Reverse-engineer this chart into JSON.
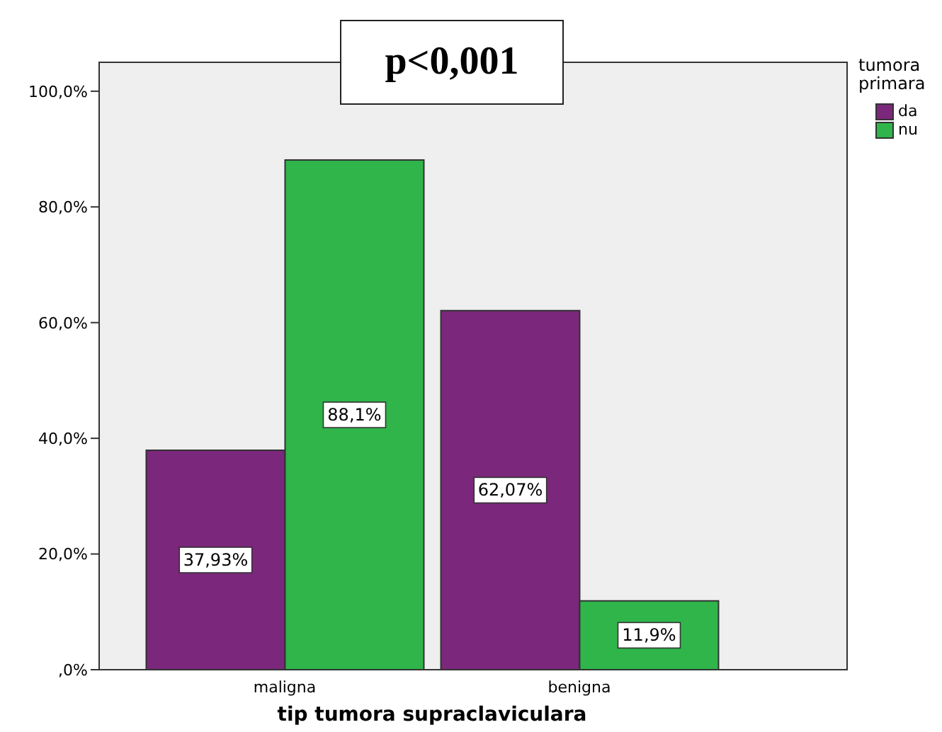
{
  "chart_data": {
    "type": "bar",
    "xlabel": "tip tumora supraclaviculara",
    "legend_title": "tumora primara",
    "categories": [
      "maligna",
      "benigna"
    ],
    "series": [
      {
        "name": "da",
        "color": "#7b277b",
        "values": [
          37.93,
          62.07
        ],
        "value_labels": [
          "37,93%",
          "62,07%"
        ]
      },
      {
        "name": "nu",
        "color": "#2fb54a",
        "values": [
          88.1,
          11.9
        ],
        "value_labels": [
          "88,1%",
          "11,9%"
        ]
      }
    ],
    "ylim": [
      0,
      105
    ],
    "yticks": [
      {
        "value": 0,
        "label": ",0%"
      },
      {
        "value": 20,
        "label": "20,0%"
      },
      {
        "value": 40,
        "label": "40,0%"
      },
      {
        "value": 60,
        "label": "60,0%"
      },
      {
        "value": 80,
        "label": "80,0%"
      },
      {
        "value": 100,
        "label": "100,0%"
      }
    ],
    "legend": "top right",
    "annotations": [
      "p<0,001"
    ]
  }
}
